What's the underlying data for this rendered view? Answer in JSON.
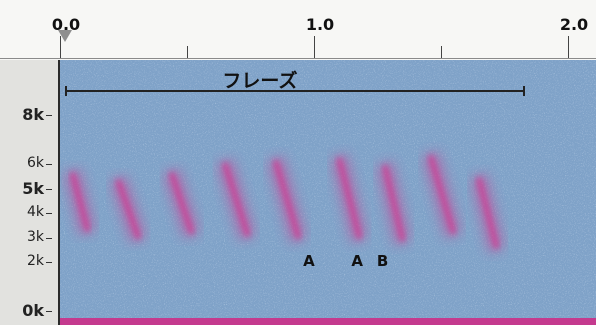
{
  "chart_data": {
    "type": "heatmap",
    "title": "",
    "xlabel": "",
    "ylabel": "",
    "xlim": [
      0.0,
      2.0
    ],
    "ylim": [
      0,
      8
    ],
    "x_ticks": [
      {
        "value": 0.0,
        "label": "0.0"
      },
      {
        "value": 1.0,
        "label": "1.0"
      },
      {
        "value": 2.0,
        "label": "2.0"
      }
    ],
    "x_minor_ticks": [
      0.5,
      1.5
    ],
    "y_ticks": [
      {
        "value": 8,
        "label": "8k",
        "major": true
      },
      {
        "value": 6,
        "label": "6k",
        "major": false
      },
      {
        "value": 5,
        "label": "5k",
        "major": true
      },
      {
        "value": 4,
        "label": "4k",
        "major": false
      },
      {
        "value": 3,
        "label": "3k",
        "major": false
      },
      {
        "value": 2,
        "label": "2k",
        "major": false
      },
      {
        "value": 0,
        "label": "0k",
        "major": true
      }
    ],
    "phrase": {
      "label": "フレーズ",
      "start": 0.02,
      "end": 1.83
    },
    "annotations": [
      {
        "text": "A",
        "x": 0.98,
        "y": 2.0
      },
      {
        "text": "A",
        "x": 1.17,
        "y": 2.0
      },
      {
        "text": "B",
        "x": 1.27,
        "y": 2.0
      }
    ],
    "syllables": [
      {
        "x": 0.04,
        "dur": 0.07,
        "f_high": 5.6,
        "f_low": 3.3
      },
      {
        "x": 0.22,
        "dur": 0.09,
        "f_high": 5.3,
        "f_low": 3.0
      },
      {
        "x": 0.43,
        "dur": 0.09,
        "f_high": 5.6,
        "f_low": 3.2
      },
      {
        "x": 0.64,
        "dur": 0.1,
        "f_high": 6.0,
        "f_low": 3.1
      },
      {
        "x": 0.84,
        "dur": 0.1,
        "f_high": 6.1,
        "f_low": 3.0
      },
      {
        "x": 1.09,
        "dur": 0.09,
        "f_high": 6.2,
        "f_low": 3.0
      },
      {
        "x": 1.27,
        "dur": 0.08,
        "f_high": 5.9,
        "f_low": 2.9
      },
      {
        "x": 1.45,
        "dur": 0.1,
        "f_high": 6.3,
        "f_low": 3.2
      },
      {
        "x": 1.64,
        "dur": 0.08,
        "f_high": 5.4,
        "f_low": 2.6
      }
    ],
    "colors": {
      "background": "#7fa2c8",
      "energy": "#d6358f",
      "floor": "#c43a8e"
    }
  }
}
